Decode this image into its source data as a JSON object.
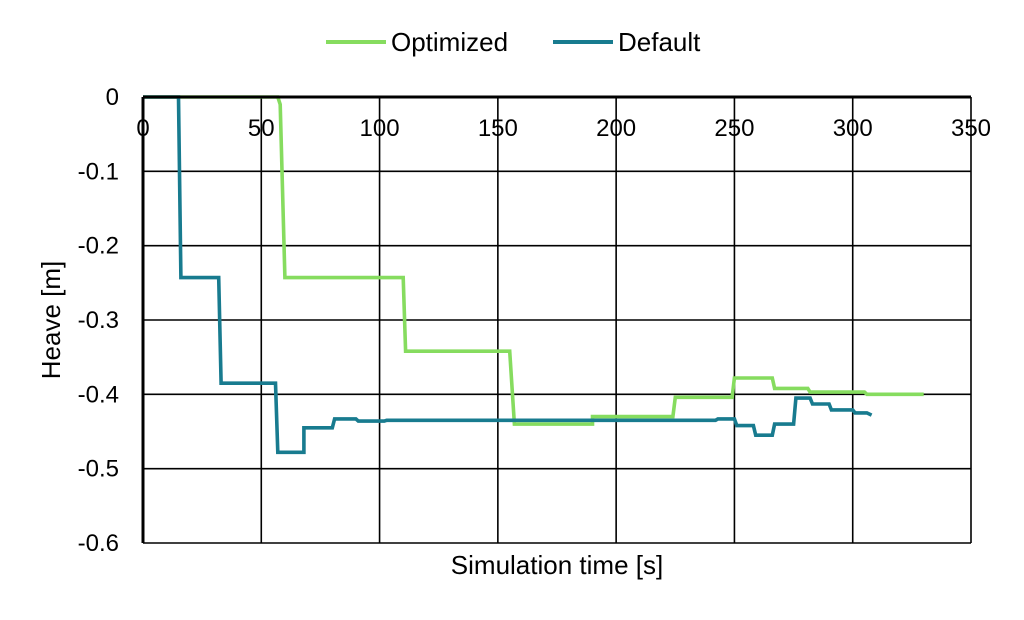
{
  "chart_data": {
    "type": "line",
    "title": "",
    "xlabel": "Simulation time [s]",
    "ylabel": "Heave [m]",
    "xlim": [
      0,
      350
    ],
    "ylim": [
      -0.6,
      0
    ],
    "x_ticks": [
      0,
      50,
      100,
      150,
      200,
      250,
      300,
      350
    ],
    "y_ticks": [
      0,
      -0.1,
      -0.2,
      -0.3,
      -0.4,
      -0.5,
      -0.6
    ],
    "x_tick_labels": [
      "0",
      "50",
      "100",
      "150",
      "200",
      "250",
      "300",
      "350"
    ],
    "y_tick_labels": [
      "0",
      "-0.1",
      "-0.2",
      "-0.3",
      "-0.4",
      "-0.5",
      "-0.6"
    ],
    "grid": true,
    "legend_position": "top-center",
    "series": [
      {
        "name": "Optimized",
        "color": "#86DC5F",
        "points": [
          [
            0,
            0
          ],
          [
            57,
            0
          ],
          [
            58,
            -0.01
          ],
          [
            60,
            -0.243
          ],
          [
            110,
            -0.243
          ],
          [
            111,
            -0.342
          ],
          [
            155,
            -0.342
          ],
          [
            157,
            -0.44
          ],
          [
            190,
            -0.44
          ],
          [
            190,
            -0.43
          ],
          [
            224,
            -0.43
          ],
          [
            225,
            -0.404
          ],
          [
            249,
            -0.404
          ],
          [
            250,
            -0.378
          ],
          [
            266,
            -0.378
          ],
          [
            267,
            -0.392
          ],
          [
            281,
            -0.392
          ],
          [
            282,
            -0.397
          ],
          [
            305,
            -0.397
          ],
          [
            306,
            -0.4
          ],
          [
            330,
            -0.4
          ]
        ]
      },
      {
        "name": "Default",
        "color": "#187B8F",
        "points": [
          [
            0,
            0
          ],
          [
            15,
            0
          ],
          [
            16,
            -0.243
          ],
          [
            32,
            -0.243
          ],
          [
            33,
            -0.385
          ],
          [
            56,
            -0.385
          ],
          [
            57,
            -0.478
          ],
          [
            68,
            -0.478
          ],
          [
            68,
            -0.445
          ],
          [
            80,
            -0.445
          ],
          [
            81,
            -0.433
          ],
          [
            90,
            -0.433
          ],
          [
            91,
            -0.436
          ],
          [
            102,
            -0.436
          ],
          [
            103,
            -0.435
          ],
          [
            242,
            -0.435
          ],
          [
            243,
            -0.433
          ],
          [
            250,
            -0.433
          ],
          [
            251,
            -0.442
          ],
          [
            258,
            -0.442
          ],
          [
            259,
            -0.455
          ],
          [
            266,
            -0.455
          ],
          [
            267,
            -0.44
          ],
          [
            275,
            -0.44
          ],
          [
            276,
            -0.405
          ],
          [
            282,
            -0.405
          ],
          [
            283,
            -0.413
          ],
          [
            290,
            -0.413
          ],
          [
            291,
            -0.421
          ],
          [
            300,
            -0.421
          ],
          [
            301,
            -0.425
          ],
          [
            306,
            -0.425
          ],
          [
            308,
            -0.428
          ]
        ]
      }
    ]
  }
}
